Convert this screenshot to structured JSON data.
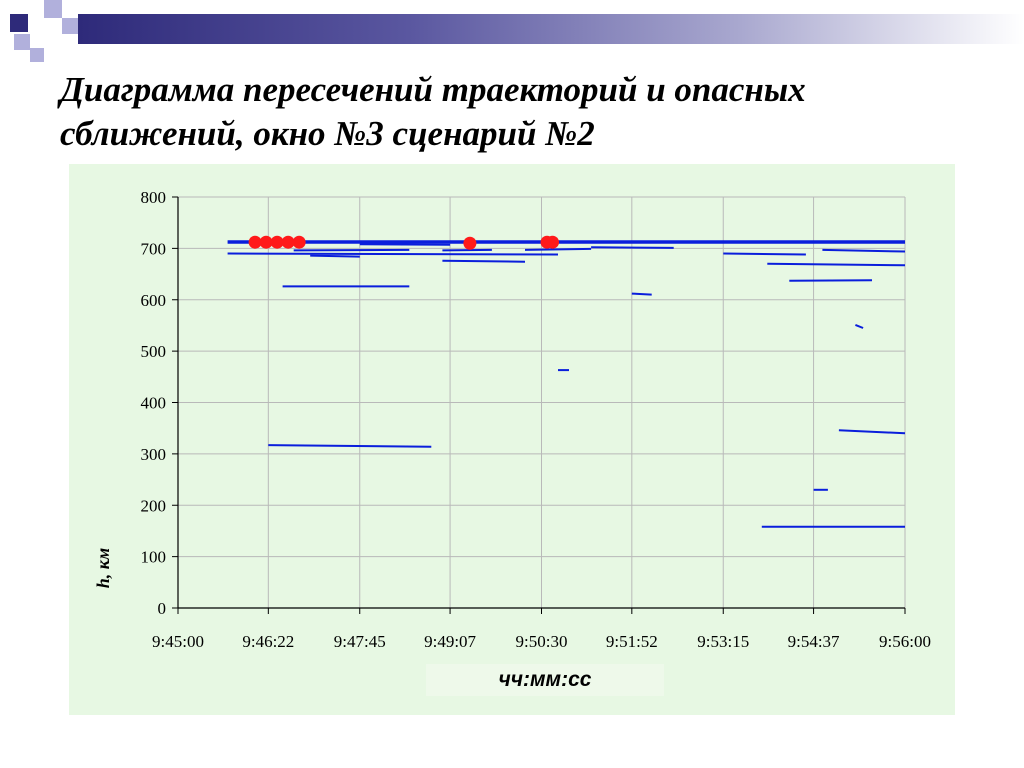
{
  "slide": {
    "title": "Диаграмма пересечений траекторий и опасных сближений, окно №3 сценарий №2"
  },
  "colors": {
    "decoration_navy": "#2e2a7a",
    "decoration_lavender": "#b1b0dc",
    "panel_background": "#e7f8e3",
    "trajectory": "#0a1edc",
    "approach_marker": "#ff1a1a"
  },
  "chart_data": {
    "type": "line",
    "title": "",
    "xlabel": "чч:мм:сс",
    "ylabel": "h, км",
    "x_ticks": [
      "9:45:00",
      "9:46:22",
      "9:47:45",
      "9:49:07",
      "9:50:30",
      "9:51:52",
      "9:53:15",
      "9:54:37",
      "9:56:00"
    ],
    "x_range": [
      "9:45:00",
      "9:56:00"
    ],
    "y_ticks": [
      0,
      100,
      200,
      300,
      400,
      500,
      600,
      700,
      800
    ],
    "ylim": [
      0,
      800
    ],
    "grid": true,
    "legend": "none",
    "series": [
      {
        "points": [
          [
            "9:45:45",
            714
          ],
          [
            "9:56:00",
            714
          ]
        ]
      },
      {
        "points": [
          [
            "9:45:45",
            711
          ],
          [
            "9:56:00",
            711
          ]
        ]
      },
      {
        "points": [
          [
            "9:45:45",
            690
          ],
          [
            "9:50:45",
            688
          ]
        ]
      },
      {
        "points": [
          [
            "9:47:00",
            686
          ],
          [
            "9:47:45",
            684
          ]
        ]
      },
      {
        "points": [
          [
            "9:46:45",
            696
          ],
          [
            "9:48:30",
            697
          ]
        ]
      },
      {
        "points": [
          [
            "9:47:45",
            708
          ],
          [
            "9:49:07",
            707
          ]
        ]
      },
      {
        "points": [
          [
            "9:49:00",
            696
          ],
          [
            "9:49:45",
            697
          ]
        ]
      },
      {
        "points": [
          [
            "9:50:15",
            697
          ],
          [
            "9:51:15",
            699
          ]
        ]
      },
      {
        "points": [
          [
            "9:49:00",
            676
          ],
          [
            "9:50:15",
            674
          ]
        ]
      },
      {
        "points": [
          [
            "9:51:15",
            702
          ],
          [
            "9:52:30",
            701
          ]
        ]
      },
      {
        "points": [
          [
            "9:46:35",
            626
          ],
          [
            "9:48:30",
            626
          ]
        ]
      },
      {
        "points": [
          [
            "9:51:52",
            612
          ],
          [
            "9:52:10",
            610
          ]
        ]
      },
      {
        "points": [
          [
            "9:53:15",
            690
          ],
          [
            "9:54:30",
            688
          ]
        ]
      },
      {
        "points": [
          [
            "9:53:55",
            670
          ],
          [
            "9:56:00",
            667
          ]
        ]
      },
      {
        "points": [
          [
            "9:54:15",
            637
          ],
          [
            "9:55:30",
            638
          ]
        ]
      },
      {
        "points": [
          [
            "9:54:45",
            697
          ],
          [
            "9:56:00",
            694
          ]
        ]
      },
      {
        "points": [
          [
            "9:55:15",
            551
          ],
          [
            "9:55:22",
            545
          ]
        ]
      },
      {
        "points": [
          [
            "9:50:45",
            463
          ],
          [
            "9:50:55",
            463
          ]
        ]
      },
      {
        "points": [
          [
            "9:46:22",
            317
          ],
          [
            "9:48:50",
            314
          ]
        ]
      },
      {
        "points": [
          [
            "9:55:00",
            346
          ],
          [
            "9:56:00",
            340
          ]
        ]
      },
      {
        "points": [
          [
            "9:54:37",
            230
          ],
          [
            "9:54:50",
            230
          ]
        ]
      },
      {
        "points": [
          [
            "9:53:50",
            158
          ],
          [
            "9:56:00",
            158
          ]
        ]
      }
    ],
    "approaches": [
      {
        "x": "9:46:10",
        "y": 712
      },
      {
        "x": "9:46:20",
        "y": 712
      },
      {
        "x": "9:46:30",
        "y": 712
      },
      {
        "x": "9:46:40",
        "y": 712
      },
      {
        "x": "9:46:50",
        "y": 712
      },
      {
        "x": "9:49:25",
        "y": 710
      },
      {
        "x": "9:50:35",
        "y": 712
      },
      {
        "x": "9:50:40",
        "y": 712
      }
    ]
  }
}
